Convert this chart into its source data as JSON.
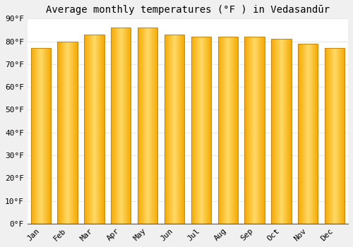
{
  "title": "Average monthly temperatures (°F ) in Vedasandūr",
  "months": [
    "Jan",
    "Feb",
    "Mar",
    "Apr",
    "May",
    "Jun",
    "Jul",
    "Aug",
    "Sep",
    "Oct",
    "Nov",
    "Dec"
  ],
  "values": [
    77,
    80,
    83,
    86,
    86,
    83,
    82,
    82,
    82,
    81,
    79,
    77
  ],
  "bar_color_left": "#F5A800",
  "bar_color_center": "#FFD966",
  "bar_color_right": "#F5A800",
  "ylim": [
    0,
    90
  ],
  "yticks": [
    0,
    10,
    20,
    30,
    40,
    50,
    60,
    70,
    80,
    90
  ],
  "ytick_labels": [
    "0°F",
    "10°F",
    "20°F",
    "30°F",
    "40°F",
    "50°F",
    "60°F",
    "70°F",
    "80°F",
    "90°F"
  ],
  "background_color": "#f0f0f0",
  "bar_background": "#ffffff",
  "grid_color": "#e8e8e8",
  "bar_edge_color": "#c8850a",
  "title_fontsize": 10,
  "tick_fontsize": 8,
  "bar_width": 0.75
}
